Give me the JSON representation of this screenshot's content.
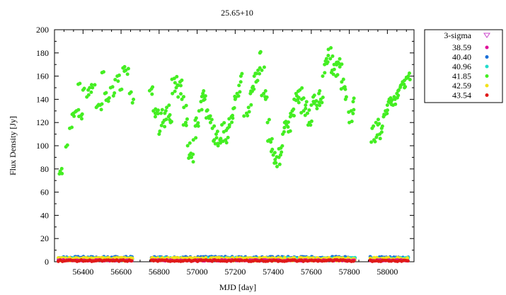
{
  "chart_data": {
    "type": "scatter",
    "title": "25.65+10",
    "xlabel": "MJD [day]",
    "ylabel": "Flux Density [Jy]",
    "xlim": [
      56250,
      58140
    ],
    "ylim": [
      0,
      200
    ],
    "x_ticks": [
      56400,
      56600,
      56800,
      57000,
      57200,
      57400,
      57600,
      57800,
      58000
    ],
    "y_ticks": [
      0,
      20,
      40,
      60,
      80,
      100,
      120,
      140,
      160,
      180,
      200
    ],
    "grid": false,
    "legend_position": "outside-right",
    "legend_title": "3-sigma",
    "legend_title_color": "#cc44cc",
    "series": [
      {
        "name": "38.59",
        "color": "#e0109a"
      },
      {
        "name": "40.40",
        "color": "#1a6fd8"
      },
      {
        "name": "40.96",
        "color": "#22dccc"
      },
      {
        "name": "41.85",
        "color": "#44ee22"
      },
      {
        "name": "42.59",
        "color": "#f2e21a"
      },
      {
        "name": "43.54",
        "color": "#e01a1a"
      }
    ],
    "main_series": "41.85",
    "main_points": [
      [
        56280,
        78
      ],
      [
        56310,
        99
      ],
      [
        56330,
        115
      ],
      [
        56350,
        128
      ],
      [
        56365,
        130
      ],
      [
        56375,
        153
      ],
      [
        56390,
        126
      ],
      [
        56400,
        148
      ],
      [
        56420,
        142
      ],
      [
        56435,
        150
      ],
      [
        56450,
        150
      ],
      [
        56470,
        133
      ],
      [
        56490,
        135
      ],
      [
        56500,
        163
      ],
      [
        56515,
        145
      ],
      [
        56530,
        140
      ],
      [
        56545,
        150
      ],
      [
        56560,
        143
      ],
      [
        56580,
        160
      ],
      [
        56595,
        148
      ],
      [
        56610,
        167
      ],
      [
        56625,
        165
      ],
      [
        56645,
        145
      ],
      [
        56660,
        137
      ],
      [
        56760,
        149
      ],
      [
        56770,
        130
      ],
      [
        56780,
        125
      ],
      [
        56790,
        130
      ],
      [
        56800,
        110
      ],
      [
        56810,
        128
      ],
      [
        56820,
        120
      ],
      [
        56830,
        128
      ],
      [
        56840,
        133
      ],
      [
        56850,
        125
      ],
      [
        56860,
        120
      ],
      [
        56870,
        145
      ],
      [
        56880,
        158
      ],
      [
        56890,
        150
      ],
      [
        56900,
        142
      ],
      [
        56910,
        155
      ],
      [
        56920,
        140
      ],
      [
        56930,
        133
      ],
      [
        56940,
        120
      ],
      [
        56950,
        100
      ],
      [
        56960,
        92
      ],
      [
        56970,
        90
      ],
      [
        56980,
        105
      ],
      [
        56990,
        122
      ],
      [
        57000,
        118
      ],
      [
        57010,
        130
      ],
      [
        57020,
        138
      ],
      [
        57030,
        145
      ],
      [
        57040,
        140
      ],
      [
        57050,
        130
      ],
      [
        57060,
        125
      ],
      [
        57070,
        120
      ],
      [
        57080,
        115
      ],
      [
        57090,
        105
      ],
      [
        57100,
        110
      ],
      [
        57110,
        100
      ],
      [
        57120,
        105
      ],
      [
        57130,
        118
      ],
      [
        57140,
        112
      ],
      [
        57150,
        105
      ],
      [
        57160,
        115
      ],
      [
        57170,
        118
      ],
      [
        57180,
        125
      ],
      [
        57190,
        132
      ],
      [
        57200,
        140
      ],
      [
        57210,
        145
      ],
      [
        57220,
        152
      ],
      [
        57230,
        160
      ],
      [
        57260,
        128
      ],
      [
        57270,
        133
      ],
      [
        57280,
        145
      ],
      [
        57290,
        150
      ],
      [
        57300,
        160
      ],
      [
        57310,
        155
      ],
      [
        57320,
        165
      ],
      [
        57330,
        180
      ],
      [
        57340,
        165
      ],
      [
        57350,
        145
      ],
      [
        57360,
        140
      ],
      [
        57370,
        120
      ],
      [
        57380,
        105
      ],
      [
        57390,
        95
      ],
      [
        57400,
        92
      ],
      [
        57410,
        88
      ],
      [
        57420,
        82
      ],
      [
        57430,
        90
      ],
      [
        57440,
        98
      ],
      [
        57450,
        110
      ],
      [
        57460,
        120
      ],
      [
        57470,
        118
      ],
      [
        57480,
        112
      ],
      [
        57490,
        125
      ],
      [
        57500,
        130
      ],
      [
        57510,
        140
      ],
      [
        57520,
        145
      ],
      [
        57530,
        140
      ],
      [
        57540,
        148
      ],
      [
        57550,
        140
      ],
      [
        57560,
        130
      ],
      [
        57570,
        135
      ],
      [
        57580,
        128
      ],
      [
        57590,
        120
      ],
      [
        57600,
        135
      ],
      [
        57610,
        142
      ],
      [
        57620,
        138
      ],
      [
        57630,
        132
      ],
      [
        57640,
        145
      ],
      [
        57650,
        140
      ],
      [
        57660,
        160
      ],
      [
        57670,
        170
      ],
      [
        57680,
        175
      ],
      [
        57690,
        183
      ],
      [
        57700,
        175
      ],
      [
        57710,
        165
      ],
      [
        57720,
        170
      ],
      [
        57730,
        160
      ],
      [
        57740,
        172
      ],
      [
        57750,
        168
      ],
      [
        57760,
        155
      ],
      [
        57770,
        150
      ],
      [
        57780,
        140
      ],
      [
        57800,
        120
      ],
      [
        57810,
        130
      ],
      [
        57820,
        138
      ],
      [
        57920,
        115
      ],
      [
        57930,
        105
      ],
      [
        57940,
        120
      ],
      [
        57950,
        118
      ],
      [
        57960,
        110
      ],
      [
        57970,
        115
      ],
      [
        57980,
        125
      ],
      [
        57990,
        130
      ],
      [
        58000,
        135
      ],
      [
        58010,
        140
      ],
      [
        58020,
        138
      ],
      [
        58030,
        135
      ],
      [
        58040,
        140
      ],
      [
        58050,
        145
      ],
      [
        58060,
        148
      ],
      [
        58070,
        152
      ],
      [
        58080,
        155
      ],
      [
        58090,
        150
      ],
      [
        58100,
        158
      ],
      [
        58110,
        160
      ]
    ],
    "low_ranges": [
      [
        56270,
        56660
      ],
      [
        56760,
        57240
      ],
      [
        57250,
        57830
      ],
      [
        57910,
        58110
      ]
    ],
    "low_level_max": 6
  }
}
